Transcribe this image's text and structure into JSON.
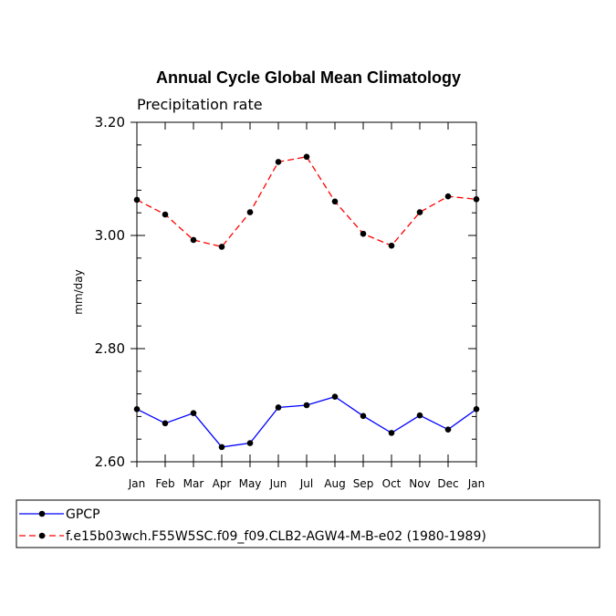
{
  "chart_data": {
    "type": "line",
    "title": "Annual Cycle Global Mean Climatology",
    "subtitle": "Precipitation rate",
    "ylabel": "mm/day",
    "xlabel": "",
    "ylim": [
      2.6,
      3.2
    ],
    "yticks": [
      "2.60",
      "2.80",
      "3.00",
      "3.20"
    ],
    "categories": [
      "Jan",
      "Feb",
      "Mar",
      "Apr",
      "May",
      "Jun",
      "Jul",
      "Aug",
      "Sep",
      "Oct",
      "Nov",
      "Dec",
      "Jan"
    ],
    "legend_position": "bottom",
    "series": [
      {
        "name": "GPCP",
        "color": "#0000ff",
        "dash": "solid",
        "values": [
          2.693,
          2.668,
          2.686,
          2.626,
          2.633,
          2.696,
          2.7,
          2.715,
          2.681,
          2.651,
          2.682,
          2.657,
          2.693
        ]
      },
      {
        "name": "f.e15b03wch.F55W5SC.f09_f09.CLB2-AGW4-M-B-e02 (1980-1989)",
        "color": "#ff0000",
        "dash": "dashed",
        "values": [
          3.063,
          3.037,
          2.992,
          2.98,
          3.041,
          3.13,
          3.139,
          3.06,
          3.003,
          2.982,
          3.041,
          3.069,
          3.064
        ]
      }
    ]
  }
}
